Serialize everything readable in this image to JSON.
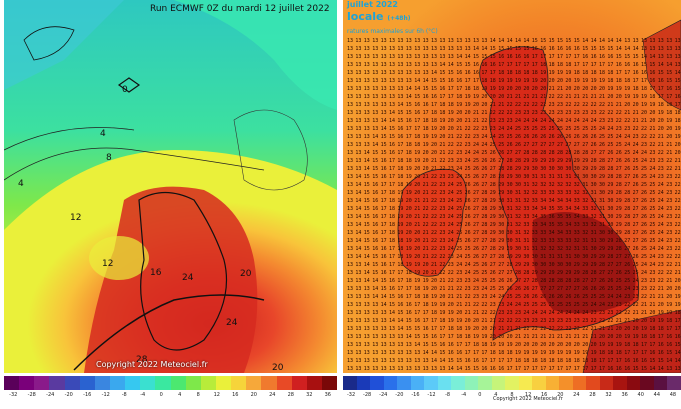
{
  "left_map": {
    "title": "Run ECMWF 0Z du mardi 12 juillet 2022",
    "copyright": "Copyright 2022 Meteociel.fr",
    "contour_labels": [
      "0",
      "4",
      "4",
      "8",
      "12",
      "12",
      "16",
      "24",
      "20",
      "24",
      "28",
      "20"
    ],
    "legend_ticks": [
      "-32",
      "-28",
      "-24",
      "-20",
      "-16",
      "-12",
      "-8",
      "-4",
      "0",
      "4",
      "8",
      "12",
      "16",
      "20",
      "24",
      "28",
      "32",
      "36"
    ],
    "legend_colors": [
      "#5a005a",
      "#7a007a",
      "#8a1a8a",
      "#5a3aa0",
      "#3a4ab8",
      "#2a62d0",
      "#3a86e0",
      "#3aa8ee",
      "#36c8f0",
      "#3ae0d0",
      "#3ae8a0",
      "#4ce870",
      "#7ee84a",
      "#b8ec3a",
      "#eaf03a",
      "#f6d43a",
      "#f6a83a",
      "#f07a2e",
      "#e84a26",
      "#d02020",
      "#a81010",
      "#7a0808"
    ]
  },
  "right_map": {
    "header_fragment": "juillet 2022",
    "header_locale": "locale",
    "header_unit": "(+48h)",
    "subtitle": "ratures maximales sur 6h (°C)",
    "copyright": "Copyright 2022 Meteociel.fr",
    "legend_ticks": [
      "-32",
      "-28",
      "-24",
      "-20",
      "-16",
      "-12",
      "-8",
      "-4",
      "0",
      "4",
      "8",
      "12",
      "16",
      "20",
      "24",
      "28",
      "32",
      "36",
      "40",
      "44",
      "48"
    ],
    "legend_colors": [
      "#1a2a8a",
      "#1a3ab8",
      "#2050d8",
      "#2a70ea",
      "#3a90f0",
      "#4ab0f6",
      "#5ccaf8",
      "#6ae0f0",
      "#7aeed8",
      "#8ef2b8",
      "#a6f498",
      "#c6f47a",
      "#e2f262",
      "#f6ea50",
      "#f8d040",
      "#f8b034",
      "#f4902a",
      "#ee6e24",
      "#e24a1e",
      "#c82a18",
      "#a81410",
      "#8a0a10",
      "#6a0820",
      "#5a1040",
      "#6a2a6a"
    ],
    "grid_sample_values": [
      "13",
      "14",
      "15",
      "16",
      "17",
      "18",
      "19",
      "20",
      "21",
      "22",
      "23",
      "24",
      "25",
      "26",
      "27",
      "28",
      "29",
      "30",
      "31",
      "32",
      "33",
      "34",
      "35",
      "36"
    ]
  }
}
